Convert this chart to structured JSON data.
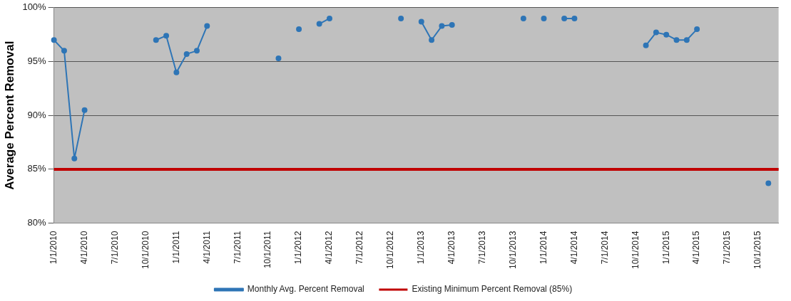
{
  "chart_data": {
    "type": "line",
    "ylabel": "Average Percent Removal",
    "categories": [
      "1/1/2010",
      null,
      null,
      "4/1/2010",
      null,
      null,
      "7/1/2010",
      null,
      null,
      "10/1/2010",
      null,
      null,
      "1/1/2011",
      null,
      null,
      "4/1/2011",
      null,
      null,
      "7/1/2011",
      null,
      null,
      "10/1/2011",
      null,
      null,
      "1/1/2012",
      null,
      null,
      "4/1/2012",
      null,
      null,
      "7/1/2012",
      null,
      null,
      "10/1/2012",
      null,
      null,
      "1/1/2013",
      null,
      null,
      "4/1/2013",
      null,
      null,
      "7/1/2013",
      null,
      null,
      "10/1/2013",
      null,
      null,
      "1/1/2014",
      null,
      null,
      "4/1/2014",
      null,
      null,
      "7/1/2014",
      null,
      null,
      "10/1/2014",
      null,
      null,
      "1/1/2015",
      null,
      null,
      "4/1/2015",
      null,
      null,
      "7/1/2015",
      null,
      null,
      "10/1/2015",
      null,
      null
    ],
    "series": [
      {
        "name": "Monthly Avg. Percent Removal",
        "color": "#2e75b6",
        "values": [
          97,
          96,
          86,
          90.5,
          null,
          null,
          null,
          null,
          null,
          null,
          97,
          97.4,
          94,
          95.7,
          96,
          98.3,
          null,
          null,
          null,
          null,
          null,
          null,
          95.3,
          null,
          98,
          null,
          98.5,
          99,
          null,
          null,
          null,
          null,
          null,
          null,
          99,
          null,
          98.7,
          97,
          98.3,
          98.4,
          null,
          null,
          null,
          null,
          null,
          null,
          99,
          null,
          99,
          null,
          99,
          99,
          null,
          null,
          null,
          null,
          null,
          null,
          96.5,
          97.7,
          97.5,
          97,
          97,
          98,
          null,
          null,
          null,
          null,
          null,
          null,
          83.7,
          null
        ]
      }
    ],
    "ref_lines": [
      {
        "axis": "y",
        "value": 85,
        "label": "Existing Minimum Percent Removal (85%)",
        "color": "#c00000"
      }
    ],
    "ylim": [
      80,
      100
    ],
    "yticks": [
      {
        "value": 80,
        "label": "80%"
      },
      {
        "value": 85,
        "label": "85%"
      },
      {
        "value": 90,
        "label": "90%"
      },
      {
        "value": 95,
        "label": "95%"
      },
      {
        "value": 100,
        "label": "100%"
      }
    ],
    "grid": "y",
    "legend": "bottom",
    "marker": "circle",
    "line_style": "solid"
  }
}
